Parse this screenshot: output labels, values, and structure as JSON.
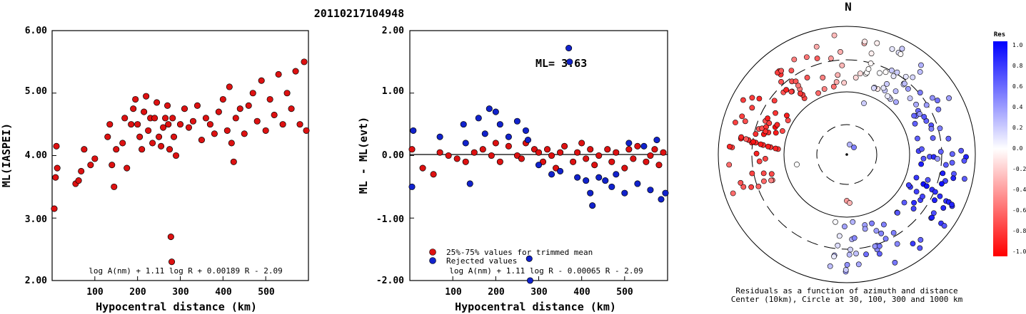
{
  "title": "20110217104948",
  "panel1": {
    "ylabel": "ML(IASPEI)",
    "xlabel": "Hypocentral distance (km)",
    "formula": "log A(nm) + 1.11 log R + 0.00189 R - 2.09",
    "yticks": [
      "6.00",
      "5.00",
      "4.00",
      "3.00",
      "2.00"
    ],
    "xticks": [
      "100",
      "200",
      "300",
      "400",
      "500"
    ]
  },
  "panel2": {
    "ylabel": "ML - ML(evt)",
    "xlabel": "Hypocentral distance (km)",
    "formula": "log A(nm) + 1.11 log R - 0.00065 R - 2.09",
    "ml_text": "ML= 3.63",
    "legend_used": "25%-75% values for trimmed mean",
    "legend_rejected": "Rejected values",
    "yticks": [
      "2.00",
      "1.00",
      "0.00",
      "-1.00",
      "-2.00"
    ],
    "xticks": [
      "100",
      "200",
      "300",
      "400",
      "500"
    ]
  },
  "panel3": {
    "north": "N",
    "caption1": "Residuals as a function of azimuth and distance",
    "caption2": "Center (10km), Circle at 30, 100, 300 and 1000 km"
  },
  "colorbar": {
    "title": "Res",
    "labels": [
      "1.0",
      "0.8",
      "0.6",
      "0.4",
      "0.2",
      "0.0",
      "-0.2",
      "-0.4",
      "-0.6",
      "-0.8",
      "-1.0"
    ]
  },
  "colors": {
    "used": "#dd1111",
    "rejected": "#1122cc",
    "positive": "#0000ff",
    "negative": "#ff0000"
  },
  "chart_data": [
    {
      "type": "scatter",
      "title": "20110217104948",
      "xlabel": "Hypocentral distance (km)",
      "ylabel": "ML(IASPEI)",
      "xlim": [
        0,
        600
      ],
      "ylim": [
        2,
        6
      ],
      "series": [
        {
          "points": [
            [
              5,
              3.15
            ],
            [
              8,
              3.65
            ],
            [
              10,
              4.15
            ],
            [
              12,
              3.8
            ],
            [
              55,
              3.55
            ],
            [
              62,
              3.6
            ],
            [
              68,
              3.75
            ],
            [
              75,
              4.1
            ],
            [
              90,
              3.85
            ],
            [
              100,
              3.95
            ],
            [
              130,
              4.3
            ],
            [
              135,
              4.5
            ],
            [
              140,
              3.85
            ],
            [
              145,
              3.5
            ],
            [
              150,
              4.1
            ],
            [
              165,
              4.2
            ],
            [
              170,
              4.6
            ],
            [
              175,
              3.8
            ],
            [
              185,
              4.5
            ],
            [
              190,
              4.75
            ],
            [
              195,
              4.9
            ],
            [
              200,
              4.5
            ],
            [
              205,
              4.3
            ],
            [
              210,
              4.1
            ],
            [
              215,
              4.7
            ],
            [
              220,
              4.95
            ],
            [
              225,
              4.4
            ],
            [
              230,
              4.6
            ],
            [
              235,
              4.2
            ],
            [
              240,
              4.6
            ],
            [
              245,
              4.85
            ],
            [
              250,
              4.3
            ],
            [
              255,
              4.15
            ],
            [
              260,
              4.45
            ],
            [
              265,
              4.6
            ],
            [
              270,
              4.8
            ],
            [
              272,
              4.5
            ],
            [
              275,
              4.1
            ],
            [
              278,
              2.7
            ],
            [
              280,
              2.3
            ],
            [
              282,
              4.6
            ],
            [
              285,
              4.3
            ],
            [
              290,
              4.0
            ],
            [
              300,
              4.5
            ],
            [
              310,
              4.75
            ],
            [
              320,
              4.45
            ],
            [
              330,
              4.55
            ],
            [
              340,
              4.8
            ],
            [
              350,
              4.25
            ],
            [
              360,
              4.6
            ],
            [
              370,
              4.5
            ],
            [
              380,
              4.35
            ],
            [
              390,
              4.7
            ],
            [
              400,
              4.9
            ],
            [
              410,
              4.4
            ],
            [
              415,
              5.1
            ],
            [
              420,
              4.2
            ],
            [
              425,
              3.9
            ],
            [
              430,
              4.6
            ],
            [
              440,
              4.75
            ],
            [
              450,
              4.35
            ],
            [
              460,
              4.8
            ],
            [
              470,
              5.0
            ],
            [
              480,
              4.55
            ],
            [
              490,
              5.2
            ],
            [
              500,
              4.4
            ],
            [
              510,
              4.9
            ],
            [
              520,
              4.65
            ],
            [
              530,
              5.3
            ],
            [
              540,
              4.5
            ],
            [
              550,
              5.0
            ],
            [
              560,
              4.75
            ],
            [
              570,
              5.35
            ],
            [
              580,
              4.5
            ],
            [
              590,
              5.5
            ],
            [
              595,
              4.4
            ]
          ]
        }
      ]
    },
    {
      "type": "scatter",
      "xlabel": "Hypocentral distance (km)",
      "ylabel": "ML - ML(evt)",
      "xlim": [
        0,
        600
      ],
      "ylim": [
        -2,
        2
      ],
      "series": [
        {
          "name": "25%-75% values for trimmed mean",
          "points": [
            [
              5,
              0.1
            ],
            [
              30,
              -0.2
            ],
            [
              55,
              -0.3
            ],
            [
              70,
              0.05
            ],
            [
              90,
              0.0
            ],
            [
              110,
              -0.05
            ],
            [
              130,
              -0.1
            ],
            [
              150,
              0.05
            ],
            [
              170,
              0.1
            ],
            [
              190,
              0.0
            ],
            [
              200,
              0.2
            ],
            [
              210,
              -0.1
            ],
            [
              230,
              0.15
            ],
            [
              250,
              0.0
            ],
            [
              260,
              -0.05
            ],
            [
              270,
              0.2
            ],
            [
              290,
              0.1
            ],
            [
              300,
              0.05
            ],
            [
              310,
              -0.1
            ],
            [
              320,
              0.1
            ],
            [
              330,
              0.0
            ],
            [
              340,
              -0.2
            ],
            [
              350,
              0.05
            ],
            [
              360,
              0.15
            ],
            [
              380,
              -0.1
            ],
            [
              390,
              0.05
            ],
            [
              400,
              0.2
            ],
            [
              410,
              -0.05
            ],
            [
              420,
              0.1
            ],
            [
              430,
              -0.15
            ],
            [
              440,
              0.0
            ],
            [
              460,
              0.1
            ],
            [
              470,
              -0.1
            ],
            [
              480,
              0.05
            ],
            [
              500,
              -0.2
            ],
            [
              510,
              0.1
            ],
            [
              520,
              -0.05
            ],
            [
              530,
              0.15
            ],
            [
              550,
              -0.1
            ],
            [
              560,
              0.0
            ],
            [
              570,
              0.1
            ],
            [
              580,
              -0.15
            ],
            [
              590,
              0.05
            ]
          ]
        },
        {
          "name": "Rejected values",
          "points": [
            [
              5,
              -0.5
            ],
            [
              8,
              0.4
            ],
            [
              70,
              0.3
            ],
            [
              125,
              0.5
            ],
            [
              130,
              0.2
            ],
            [
              140,
              -0.45
            ],
            [
              160,
              0.6
            ],
            [
              175,
              0.35
            ],
            [
              185,
              0.75
            ],
            [
              200,
              0.7
            ],
            [
              210,
              0.5
            ],
            [
              230,
              0.3
            ],
            [
              250,
              0.55
            ],
            [
              270,
              0.4
            ],
            [
              275,
              0.25
            ],
            [
              278,
              -1.65
            ],
            [
              280,
              -2.0
            ],
            [
              300,
              -0.15
            ],
            [
              330,
              -0.3
            ],
            [
              350,
              -0.25
            ],
            [
              370,
              1.72
            ],
            [
              372,
              1.5
            ],
            [
              390,
              -0.35
            ],
            [
              410,
              -0.4
            ],
            [
              420,
              -0.6
            ],
            [
              425,
              -0.8
            ],
            [
              440,
              -0.35
            ],
            [
              455,
              -0.4
            ],
            [
              470,
              -0.5
            ],
            [
              480,
              -0.3
            ],
            [
              500,
              -0.6
            ],
            [
              510,
              0.2
            ],
            [
              530,
              -0.45
            ],
            [
              545,
              0.15
            ],
            [
              560,
              -0.55
            ],
            [
              575,
              0.25
            ],
            [
              585,
              -0.7
            ],
            [
              595,
              -0.6
            ]
          ]
        }
      ],
      "annotations": [
        "ML= 3.63"
      ]
    }
  ]
}
